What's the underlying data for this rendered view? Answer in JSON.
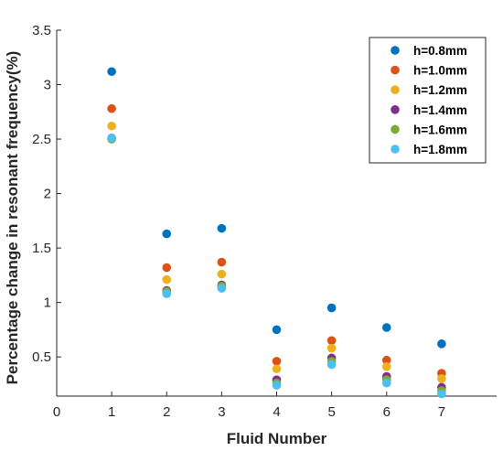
{
  "chart_data": {
    "type": "scatter",
    "xlabel": "Fluid Number",
    "ylabel": "Percentage change in resonant frequency(%)",
    "xlim": [
      0,
      8
    ],
    "ylim": [
      0.14,
      3.5
    ],
    "xticks": [
      0,
      1,
      2,
      3,
      4,
      5,
      6,
      7
    ],
    "yticks": [
      0.5,
      1,
      1.5,
      2,
      2.5,
      3,
      3.5
    ],
    "xtick_labels": [
      "0",
      "1",
      "2",
      "3",
      "4",
      "5",
      "6",
      "7"
    ],
    "ytick_labels": [
      "0.5",
      "1",
      "1.5",
      "2",
      "2.5",
      "3",
      "3.5"
    ],
    "grid": false,
    "legend_position": "top-right",
    "x": [
      1,
      2,
      3,
      4,
      5,
      6,
      7
    ],
    "series": [
      {
        "name": "h=0.8mm",
        "color": "#0072BD",
        "values": [
          3.12,
          1.63,
          1.68,
          0.75,
          0.95,
          0.77,
          0.62
        ]
      },
      {
        "name": "h=1.0mm",
        "color": "#D95319",
        "values": [
          2.78,
          1.32,
          1.37,
          0.46,
          0.65,
          0.47,
          0.35
        ]
      },
      {
        "name": "h=1.2mm",
        "color": "#EDB120",
        "values": [
          2.62,
          1.21,
          1.26,
          0.39,
          0.58,
          0.41,
          0.3
        ]
      },
      {
        "name": "h=1.4mm",
        "color": "#7E2F8E",
        "values": [
          2.51,
          1.11,
          1.16,
          0.29,
          0.49,
          0.32,
          0.22
        ]
      },
      {
        "name": "h=1.6mm",
        "color": "#77AC30",
        "values": [
          2.5,
          1.1,
          1.15,
          0.26,
          0.46,
          0.29,
          0.19
        ]
      },
      {
        "name": "h=1.8mm",
        "color": "#4DBEEE",
        "values": [
          2.51,
          1.08,
          1.13,
          0.24,
          0.43,
          0.26,
          0.16
        ]
      }
    ]
  }
}
